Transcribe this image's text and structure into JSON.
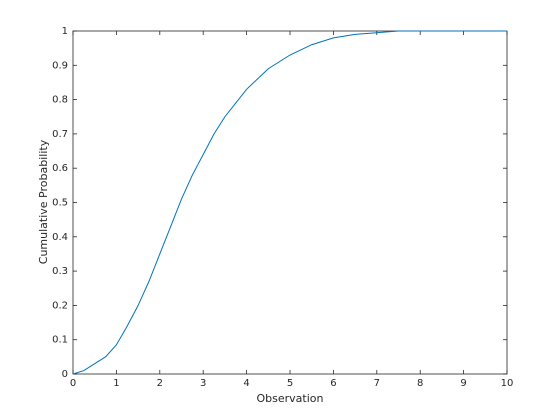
{
  "chart_data": {
    "type": "line",
    "xlabel": "Observation",
    "ylabel": "Cumulative Probability",
    "x": [
      0,
      0.25,
      0.5,
      0.75,
      1,
      1.25,
      1.5,
      1.75,
      2,
      2.25,
      2.5,
      2.75,
      3,
      3.25,
      3.5,
      3.75,
      4,
      4.25,
      4.5,
      4.75,
      5,
      5.5,
      6,
      6.5,
      7,
      7.5,
      8,
      9,
      10
    ],
    "series": [
      {
        "color": "#0072bd",
        "values": [
          0,
          0.01,
          0.03,
          0.05,
          0.085,
          0.14,
          0.2,
          0.27,
          0.35,
          0.43,
          0.51,
          0.58,
          0.64,
          0.7,
          0.75,
          0.79,
          0.83,
          0.86,
          0.89,
          0.91,
          0.93,
          0.96,
          0.98,
          0.99,
          0.995,
          1,
          1,
          1,
          1
        ]
      }
    ],
    "xlim": [
      0,
      10
    ],
    "ylim": [
      0,
      1
    ],
    "xticks": [
      0,
      1,
      2,
      3,
      4,
      5,
      6,
      7,
      8,
      9,
      10
    ],
    "yticks": [
      0,
      0.1,
      0.2,
      0.3,
      0.4,
      0.5,
      0.6,
      0.7,
      0.8,
      0.9,
      1
    ],
    "grid": false
  }
}
